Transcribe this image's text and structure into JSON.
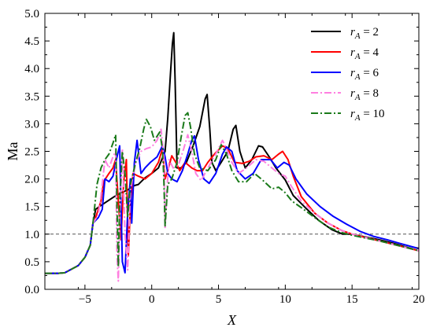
{
  "chart_data": {
    "type": "line",
    "xlabel": "X",
    "ylabel": "Ma",
    "xlim": [
      -8,
      20
    ],
    "ylim": [
      0.0,
      5.0
    ],
    "x_ticks": [
      -5,
      0,
      5,
      10,
      15,
      20
    ],
    "x_tick_labels": [
      "−5",
      "0",
      "5",
      "10",
      "15",
      "20"
    ],
    "y_ticks": [
      0.0,
      0.5,
      1.0,
      1.5,
      2.0,
      2.5,
      3.0,
      3.5,
      4.0,
      4.5,
      5.0
    ],
    "y_tick_labels": [
      "0.0",
      "0.5",
      "1.0",
      "1.5",
      "2.0",
      "2.5",
      "3.0",
      "3.5",
      "4.0",
      "4.5",
      "5.0"
    ],
    "reference_line": {
      "y": 1.0,
      "style": "dashed",
      "color": "#555555"
    },
    "legend": {
      "placement": "top-right"
    },
    "series": [
      {
        "name": "r_A = 2",
        "legend_symbol": "r",
        "legend_subscript": "A",
        "legend_value": " = 2",
        "color": "#000000",
        "dash": "solid",
        "points": [
          [
            -8,
            0.29
          ],
          [
            -7,
            0.29
          ],
          [
            -6.5,
            0.3
          ],
          [
            -5.5,
            0.43
          ],
          [
            -5,
            0.58
          ],
          [
            -4.6,
            0.8
          ],
          [
            -4.4,
            1.2
          ],
          [
            -4.2,
            1.45
          ],
          [
            -3.8,
            1.52
          ],
          [
            -3.3,
            1.6
          ],
          [
            -2.8,
            1.68
          ],
          [
            -2.3,
            1.75
          ],
          [
            -1.8,
            1.8
          ],
          [
            -1.3,
            1.88
          ],
          [
            -1,
            1.9
          ],
          [
            -0.5,
            2.02
          ],
          [
            0,
            2.1
          ],
          [
            0.5,
            2.2
          ],
          [
            1,
            2.5
          ],
          [
            1.2,
            3.1
          ],
          [
            1.4,
            3.9
          ],
          [
            1.55,
            4.45
          ],
          [
            1.65,
            4.65
          ],
          [
            1.75,
            3.8
          ],
          [
            1.9,
            2.2
          ],
          [
            2.2,
            2.2
          ],
          [
            2.6,
            2.3
          ],
          [
            3.1,
            2.6
          ],
          [
            3.6,
            2.95
          ],
          [
            4,
            3.45
          ],
          [
            4.15,
            3.53
          ],
          [
            4.35,
            2.9
          ],
          [
            4.5,
            2.3
          ],
          [
            4.8,
            2.15
          ],
          [
            5.2,
            2.3
          ],
          [
            5.7,
            2.5
          ],
          [
            6.1,
            2.9
          ],
          [
            6.3,
            2.97
          ],
          [
            6.6,
            2.5
          ],
          [
            7,
            2.2
          ],
          [
            7.5,
            2.35
          ],
          [
            8,
            2.6
          ],
          [
            8.3,
            2.58
          ],
          [
            8.8,
            2.4
          ],
          [
            9.3,
            2.2
          ],
          [
            10,
            1.98
          ],
          [
            10.6,
            1.7
          ],
          [
            11.5,
            1.48
          ],
          [
            12.5,
            1.25
          ],
          [
            13.5,
            1.08
          ],
          [
            14.3,
            1.0
          ],
          [
            15,
            1.0
          ],
          [
            16,
            0.95
          ],
          [
            17,
            0.9
          ],
          [
            18,
            0.84
          ],
          [
            19,
            0.77
          ],
          [
            20,
            0.7
          ]
        ]
      },
      {
        "name": "r_A = 4",
        "legend_symbol": "r",
        "legend_subscript": "A",
        "legend_value": " = 4",
        "color": "#ff0000",
        "dash": "solid",
        "points": [
          [
            -8,
            0.29
          ],
          [
            -7,
            0.29
          ],
          [
            -6.5,
            0.3
          ],
          [
            -5.5,
            0.43
          ],
          [
            -5,
            0.58
          ],
          [
            -4.6,
            0.8
          ],
          [
            -4.4,
            1.2
          ],
          [
            -4.2,
            1.3
          ],
          [
            -3.8,
            1.6
          ],
          [
            -3.6,
            1.95
          ],
          [
            -3.2,
            2.1
          ],
          [
            -2.9,
            2.2
          ],
          [
            -2.7,
            2.35
          ],
          [
            -2.5,
            1.6
          ],
          [
            -2.3,
            0.9
          ],
          [
            -2.1,
            1.95
          ],
          [
            -1.9,
            2.35
          ],
          [
            -1.75,
            0.6
          ],
          [
            -1.6,
            1.5
          ],
          [
            -1.4,
            2.1
          ],
          [
            -1,
            2.05
          ],
          [
            -0.5,
            2.0
          ],
          [
            0,
            2.1
          ],
          [
            0.5,
            2.3
          ],
          [
            0.8,
            2.55
          ],
          [
            1,
            2.0
          ],
          [
            1.2,
            2.15
          ],
          [
            1.5,
            2.42
          ],
          [
            1.8,
            2.3
          ],
          [
            2.1,
            2.15
          ],
          [
            2.5,
            2.3
          ],
          [
            3,
            2.2
          ],
          [
            3.4,
            2.15
          ],
          [
            3.8,
            2.15
          ],
          [
            4.2,
            2.3
          ],
          [
            4.7,
            2.45
          ],
          [
            5.3,
            2.6
          ],
          [
            5.7,
            2.55
          ],
          [
            6.2,
            2.3
          ],
          [
            6.8,
            2.28
          ],
          [
            7.3,
            2.32
          ],
          [
            7.8,
            2.4
          ],
          [
            8.4,
            2.42
          ],
          [
            9,
            2.35
          ],
          [
            9.5,
            2.45
          ],
          [
            9.8,
            2.5
          ],
          [
            10.2,
            2.35
          ],
          [
            10.6,
            2.05
          ],
          [
            11.2,
            1.68
          ],
          [
            12.2,
            1.38
          ],
          [
            13.2,
            1.2
          ],
          [
            14.2,
            1.07
          ],
          [
            15,
            1.0
          ],
          [
            16,
            0.94
          ],
          [
            17,
            0.88
          ],
          [
            18,
            0.82
          ],
          [
            19,
            0.76
          ],
          [
            20,
            0.7
          ]
        ]
      },
      {
        "name": "r_A = 6",
        "legend_symbol": "r",
        "legend_subscript": "A",
        "legend_value": " = 6",
        "color": "#0000ff",
        "dash": "solid",
        "points": [
          [
            -8,
            0.29
          ],
          [
            -7,
            0.29
          ],
          [
            -6.5,
            0.3
          ],
          [
            -5.5,
            0.43
          ],
          [
            -5,
            0.58
          ],
          [
            -4.6,
            0.8
          ],
          [
            -4.4,
            1.2
          ],
          [
            -4,
            1.3
          ],
          [
            -3.7,
            1.45
          ],
          [
            -3.5,
            2.0
          ],
          [
            -3.2,
            1.95
          ],
          [
            -2.9,
            2.05
          ],
          [
            -2.6,
            2.4
          ],
          [
            -2.4,
            2.6
          ],
          [
            -2.2,
            0.5
          ],
          [
            -2,
            0.3
          ],
          [
            -1.8,
            1.4
          ],
          [
            -1.6,
            2.0
          ],
          [
            -1.5,
            1.2
          ],
          [
            -1.3,
            2.3
          ],
          [
            -1.1,
            2.7
          ],
          [
            -0.8,
            2.1
          ],
          [
            -0.5,
            2.2
          ],
          [
            -0.1,
            2.3
          ],
          [
            0.4,
            2.4
          ],
          [
            0.8,
            2.6
          ],
          [
            1,
            2.4
          ],
          [
            1.2,
            2.1
          ],
          [
            1.5,
            2.0
          ],
          [
            1.9,
            1.95
          ],
          [
            2.3,
            2.15
          ],
          [
            2.7,
            2.45
          ],
          [
            3,
            2.7
          ],
          [
            3.2,
            2.78
          ],
          [
            3.5,
            2.35
          ],
          [
            3.9,
            2.0
          ],
          [
            4.3,
            1.92
          ],
          [
            4.8,
            2.1
          ],
          [
            5.3,
            2.45
          ],
          [
            5.6,
            2.58
          ],
          [
            6,
            2.5
          ],
          [
            6.4,
            2.15
          ],
          [
            7,
            2.0
          ],
          [
            7.6,
            2.1
          ],
          [
            8.2,
            2.35
          ],
          [
            8.9,
            2.35
          ],
          [
            9.4,
            2.2
          ],
          [
            9.9,
            2.3
          ],
          [
            10.3,
            2.25
          ],
          [
            10.8,
            2.0
          ],
          [
            11.6,
            1.73
          ],
          [
            12.6,
            1.5
          ],
          [
            13.6,
            1.32
          ],
          [
            14.6,
            1.18
          ],
          [
            15.6,
            1.05
          ],
          [
            16.6,
            0.96
          ],
          [
            17.6,
            0.9
          ],
          [
            18.6,
            0.83
          ],
          [
            19.5,
            0.77
          ],
          [
            20,
            0.74
          ]
        ]
      },
      {
        "name": "r_A = 8",
        "legend_symbol": "r",
        "legend_subscript": "A",
        "legend_value": " = 8",
        "color": "#ff7fe0",
        "dash": "dashdot",
        "points": [
          [
            -8,
            0.29
          ],
          [
            -7,
            0.29
          ],
          [
            -6.5,
            0.3
          ],
          [
            -5.5,
            0.43
          ],
          [
            -5,
            0.58
          ],
          [
            -4.6,
            0.8
          ],
          [
            -4.4,
            1.2
          ],
          [
            -4,
            1.35
          ],
          [
            -3.8,
            1.7
          ],
          [
            -3.5,
            2.35
          ],
          [
            -3.2,
            2.2
          ],
          [
            -2.9,
            2.4
          ],
          [
            -2.7,
            2.5
          ],
          [
            -2.6,
            0.6
          ],
          [
            -2.5,
            0.15
          ],
          [
            -2.4,
            1.2
          ],
          [
            -2.2,
            2.55
          ],
          [
            -2,
            1.0
          ],
          [
            -1.8,
            0.35
          ],
          [
            -1.6,
            1.8
          ],
          [
            -1.2,
            2.3
          ],
          [
            -0.8,
            2.5
          ],
          [
            -0.4,
            2.55
          ],
          [
            0,
            2.58
          ],
          [
            0.4,
            2.7
          ],
          [
            0.7,
            2.9
          ],
          [
            0.9,
            2.4
          ],
          [
            1,
            1.1
          ],
          [
            1.1,
            1.7
          ],
          [
            1.3,
            2.35
          ],
          [
            1.6,
            2.2
          ],
          [
            2,
            2.25
          ],
          [
            2.4,
            2.55
          ],
          [
            2.7,
            2.8
          ],
          [
            3,
            2.5
          ],
          [
            3.3,
            2.1
          ],
          [
            3.7,
            1.97
          ],
          [
            4.2,
            2.2
          ],
          [
            4.8,
            2.45
          ],
          [
            5.3,
            2.7
          ],
          [
            5.6,
            2.55
          ],
          [
            6,
            2.3
          ],
          [
            6.5,
            2.1
          ],
          [
            7.1,
            2.2
          ],
          [
            7.8,
            2.35
          ],
          [
            8.4,
            2.32
          ],
          [
            9,
            2.2
          ],
          [
            9.5,
            2.1
          ],
          [
            10,
            2.05
          ],
          [
            10.5,
            1.85
          ],
          [
            11.2,
            1.6
          ],
          [
            12.2,
            1.38
          ],
          [
            13.2,
            1.2
          ],
          [
            14.2,
            1.07
          ],
          [
            15,
            1.0
          ],
          [
            16,
            0.94
          ],
          [
            17,
            0.88
          ],
          [
            18,
            0.82
          ],
          [
            19,
            0.76
          ],
          [
            20,
            0.7
          ]
        ]
      },
      {
        "name": "r_A = 10",
        "legend_symbol": "r",
        "legend_subscript": "A",
        "legend_value": " = 10",
        "color": "#1a7a1a",
        "dash": "dashdot",
        "points": [
          [
            -8,
            0.29
          ],
          [
            -7,
            0.29
          ],
          [
            -6.5,
            0.3
          ],
          [
            -5.5,
            0.43
          ],
          [
            -5,
            0.58
          ],
          [
            -4.6,
            0.8
          ],
          [
            -4.4,
            1.2
          ],
          [
            -4.1,
            1.9
          ],
          [
            -3.8,
            2.2
          ],
          [
            -3.5,
            2.35
          ],
          [
            -3.2,
            2.45
          ],
          [
            -2.9,
            2.65
          ],
          [
            -2.7,
            2.8
          ],
          [
            -2.6,
            1.5
          ],
          [
            -2.5,
            0.4
          ],
          [
            -2.4,
            1.6
          ],
          [
            -2.2,
            2.5
          ],
          [
            -2,
            2.1
          ],
          [
            -1.8,
            1.3
          ],
          [
            -1.6,
            1.9
          ],
          [
            -1.2,
            2.3
          ],
          [
            -0.9,
            2.55
          ],
          [
            -0.6,
            2.9
          ],
          [
            -0.4,
            3.08
          ],
          [
            -0.1,
            2.95
          ],
          [
            0.2,
            2.7
          ],
          [
            0.6,
            2.85
          ],
          [
            0.8,
            2.55
          ],
          [
            0.9,
            2.05
          ],
          [
            1,
            1.15
          ],
          [
            1.2,
            1.9
          ],
          [
            1.5,
            2.0
          ],
          [
            1.9,
            2.3
          ],
          [
            2.2,
            2.75
          ],
          [
            2.5,
            3.15
          ],
          [
            2.7,
            3.2
          ],
          [
            2.9,
            2.95
          ],
          [
            3.2,
            2.45
          ],
          [
            3.6,
            2.2
          ],
          [
            4.2,
            2.15
          ],
          [
            4.8,
            2.35
          ],
          [
            5.2,
            2.62
          ],
          [
            5.6,
            2.45
          ],
          [
            6,
            2.15
          ],
          [
            6.5,
            1.95
          ],
          [
            7.1,
            1.95
          ],
          [
            7.7,
            2.1
          ],
          [
            8.3,
            1.98
          ],
          [
            9,
            1.82
          ],
          [
            9.5,
            1.85
          ],
          [
            10,
            1.75
          ],
          [
            10.5,
            1.6
          ],
          [
            11.2,
            1.48
          ],
          [
            12.2,
            1.3
          ],
          [
            13.2,
            1.13
          ],
          [
            14.2,
            1.03
          ],
          [
            15,
            0.98
          ],
          [
            16,
            0.93
          ],
          [
            17,
            0.88
          ],
          [
            18,
            0.82
          ],
          [
            19,
            0.76
          ],
          [
            20,
            0.7
          ]
        ]
      }
    ]
  }
}
